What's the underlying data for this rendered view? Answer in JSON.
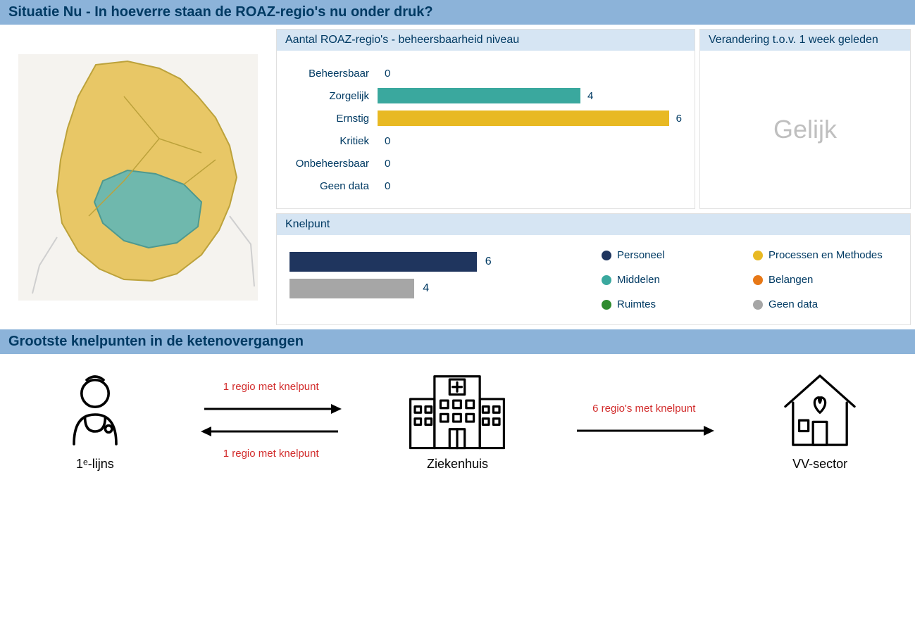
{
  "section1_title": "Situatie Nu - In hoeverre staan de ROAZ-regio's nu onder druk?",
  "beheers": {
    "title": "Aantal ROAZ-regio's - beheersbaarheid niveau",
    "max": 6,
    "rows": [
      {
        "label": "Beheersbaar",
        "value": 0,
        "color": "#3aa89e"
      },
      {
        "label": "Zorgelijk",
        "value": 4,
        "color": "#3aa89e"
      },
      {
        "label": "Ernstig",
        "value": 6,
        "color": "#e8b923"
      },
      {
        "label": "Kritiek",
        "value": 0,
        "color": "#e8b923"
      },
      {
        "label": "Onbeheersbaar",
        "value": 0,
        "color": "#e8b923"
      },
      {
        "label": "Geen data",
        "value": 0,
        "color": "#a6a6a6"
      }
    ]
  },
  "change": {
    "title": "Verandering t.o.v. 1 week geleden",
    "value": "Gelijk"
  },
  "knelpunt": {
    "title": "Knelpunt",
    "max": 10,
    "bars": [
      {
        "value": 6,
        "color": "#1f355e"
      },
      {
        "value": 4,
        "color": "#a6a6a6"
      }
    ],
    "legend": [
      {
        "label": "Personeel",
        "color": "#1f355e"
      },
      {
        "label": "Processen en Methodes",
        "color": "#e8b923"
      },
      {
        "label": "Middelen",
        "color": "#3aa89e"
      },
      {
        "label": "Belangen",
        "color": "#e77817"
      },
      {
        "label": "Ruimtes",
        "color": "#2e8b2e"
      },
      {
        "label": "Geen data",
        "color": "#a6a6a6"
      }
    ]
  },
  "map": {
    "background": "#f5f3ef",
    "outline": "#bfbfbf",
    "region_fill_yellow": "#e8c766",
    "region_fill_teal": "#6fb8ad"
  },
  "section2_title": "Grootste knelpunten in de ketenovergangen",
  "flow": {
    "node1": "1ᵉ-lijns",
    "node2": "Ziekenhuis",
    "node3": "VV-sector",
    "arrow1_top": "1 regio met knelpunt",
    "arrow1_bottom": "1 regio met knelpunt",
    "arrow2": "6 regio's met knelpunt"
  }
}
